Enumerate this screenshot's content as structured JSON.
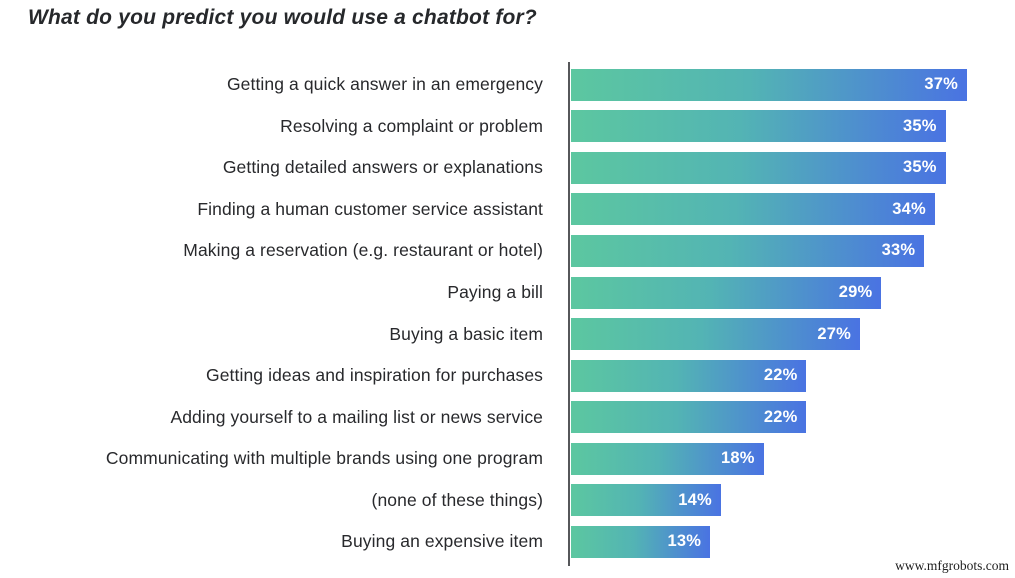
{
  "title": "What do you predict you would use a chatbot for?",
  "watermark": "www.mfgrobots.com",
  "chart_data": {
    "type": "bar",
    "orientation": "horizontal",
    "title": "What do you predict you would use a chatbot for?",
    "categories": [
      "Getting a quick answer in an emergency",
      "Resolving a complaint or problem",
      "Getting detailed answers or explanations",
      "Finding a human customer service assistant",
      "Making a reservation (e.g. restaurant or hotel)",
      "Paying a bill",
      "Buying a basic item",
      "Getting ideas and inspiration for purchases",
      "Adding yourself to a mailing list or news service",
      "Communicating with multiple brands using one program",
      "(none of these things)",
      "Buying an expensive item"
    ],
    "values": [
      37,
      35,
      35,
      34,
      33,
      29,
      27,
      22,
      22,
      18,
      14,
      13
    ],
    "value_suffix": "%",
    "value_label_position": "inside-end",
    "xlim": [
      0,
      41.5
    ],
    "grid": false,
    "legend": "none",
    "colors": {
      "bar_gradient_start": "#5cc7a0",
      "bar_gradient_end": "#4a73e2",
      "value_label": "#ffffff",
      "category_label": "#28292c",
      "axis_line": "#56575a",
      "title": "#26282b",
      "background": "#ffffff"
    }
  }
}
